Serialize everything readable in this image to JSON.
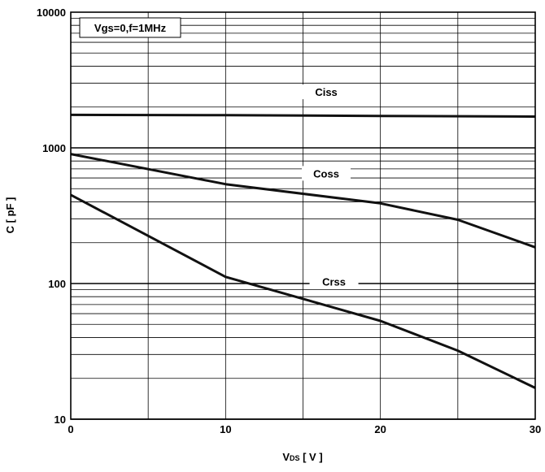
{
  "chart_data": {
    "type": "line",
    "title": "",
    "condition_note": "Vgs=0,f=1MHz",
    "xlabel": "V",
    "xlabel_sub": "DS",
    "xlabel_unit": " [ V ]",
    "ylabel": "C [ pF ]",
    "xlim": [
      0,
      30
    ],
    "ylim": [
      10,
      10000
    ],
    "y_scale": "log",
    "grid": true,
    "x_ticks": [
      0,
      10,
      20,
      30
    ],
    "x_tick_labels": [
      "0",
      "10",
      "20",
      "30"
    ],
    "y_ticks": [
      10,
      100,
      1000,
      10000
    ],
    "y_tick_labels": [
      "10",
      "100",
      "1000",
      "10000"
    ],
    "series": [
      {
        "name": "Ciss",
        "x": [
          0,
          10,
          20,
          30
        ],
        "y": [
          1750,
          1740,
          1720,
          1700
        ]
      },
      {
        "name": "Coss",
        "x": [
          0,
          10,
          20,
          25,
          30
        ],
        "y": [
          900,
          540,
          390,
          295,
          185
        ]
      },
      {
        "name": "Crss",
        "x": [
          0,
          10,
          20,
          25,
          30
        ],
        "y": [
          450,
          112,
          53,
          32,
          17
        ]
      }
    ],
    "annotations": [
      {
        "text": "Ciss",
        "x": 16.5,
        "y": 2550
      },
      {
        "text": "Coss",
        "x": 16.5,
        "y": 640
      },
      {
        "text": "Crss",
        "x": 17.0,
        "y": 102
      }
    ]
  }
}
